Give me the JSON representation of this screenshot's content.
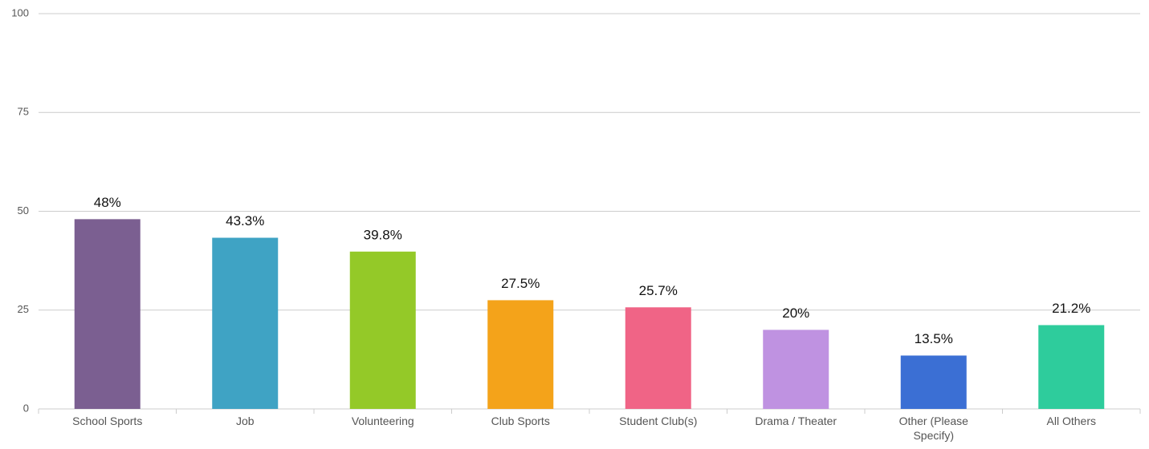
{
  "chart_data": {
    "type": "bar",
    "categories": [
      "School Sports",
      "Job",
      "Volunteering",
      "Club Sports",
      "Student Club(s)",
      "Drama / Theater",
      "Other (Please Specify)",
      "All Others"
    ],
    "values": [
      48,
      43.3,
      39.8,
      27.5,
      25.7,
      20,
      13.5,
      21.2
    ],
    "value_labels": [
      "48%",
      "43.3%",
      "39.8%",
      "27.5%",
      "25.7%",
      "20%",
      "13.5%",
      "21.2%"
    ],
    "colors": [
      "#7b5f91",
      "#3fa3c4",
      "#94c928",
      "#f4a31a",
      "#f06486",
      "#bf92e1",
      "#3b6fd4",
      "#2ecc9c"
    ],
    "ylim": [
      0,
      100
    ],
    "yticks": [
      0,
      25,
      50,
      75,
      100
    ],
    "grid": true
  }
}
